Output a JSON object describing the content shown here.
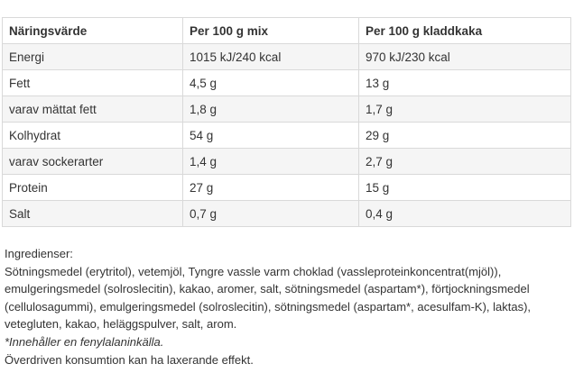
{
  "table": {
    "headers": [
      "Näringsvärde",
      "Per 100 g mix",
      "Per 100 g kladdkaka"
    ],
    "rows": [
      [
        "Energi",
        "1015 kJ/240 kcal",
        "970 kJ/230 kcal"
      ],
      [
        "Fett",
        "4,5 g",
        "13 g"
      ],
      [
        "varav mättat fett",
        "1,8 g",
        "1,7 g"
      ],
      [
        "Kolhydrat",
        "54 g",
        "29 g"
      ],
      [
        "varav sockerarter",
        "1,4 g",
        "2,7 g"
      ],
      [
        "Protein",
        "27 g",
        "15 g"
      ],
      [
        "Salt",
        "0,7 g",
        "0,4 g"
      ]
    ]
  },
  "ingredients": {
    "heading": "Ingredienser:",
    "lines": [
      "Sötningsmedel (erytritol), vetemjöl, Tyngre vassle varm choklad (vassleproteinkoncentrat(mjöl)),",
      "emulgeringsmedel (solroslecitin), kakao, aromer, salt, sötningsmedel (aspartam*), förtjockningsmedel",
      "(cellulosagummi), emulgeringsmedel (solroslecitin), sötningsmedel (aspartam*, acesulfam-K), laktas),",
      "vetegluten, kakao, heläggspulver, salt, arom."
    ],
    "footnote": "*Innehåller en fenylalaninkälla.",
    "warning": "Överdriven konsumtion kan ha laxerande effekt."
  }
}
